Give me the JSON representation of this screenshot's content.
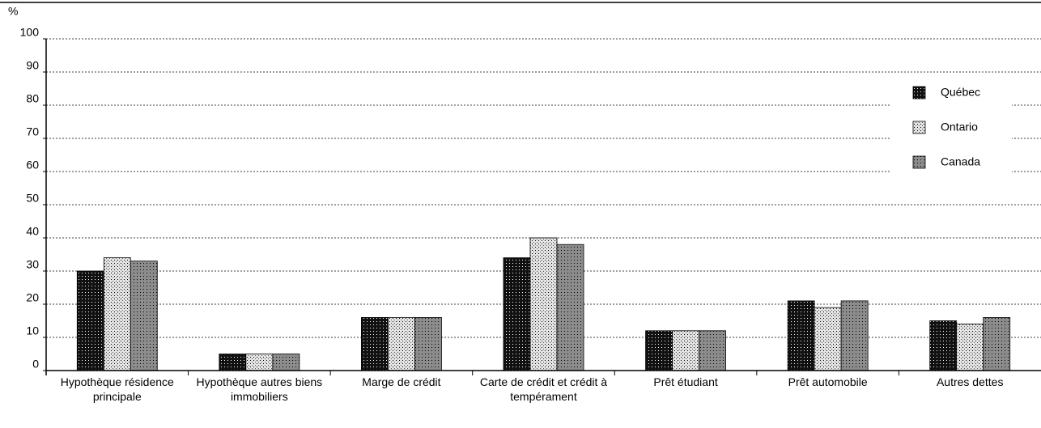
{
  "chart_data": {
    "type": "bar",
    "y_label": "%",
    "categories": [
      "Hypothèque résidence principale",
      "Hypothèque autres biens immobiliers",
      "Marge de crédit",
      "Carte de crédit et crédit à tempérament",
      "Prêt étudiant",
      "Prêt automobile",
      "Autres dettes"
    ],
    "series": [
      {
        "name": "Québec",
        "color": "#111111",
        "values": [
          30,
          5,
          16,
          34,
          12,
          21,
          15
        ]
      },
      {
        "name": "Ontario",
        "color": "#e4e4e4",
        "values": [
          34,
          5,
          16,
          40,
          12,
          19,
          14
        ]
      },
      {
        "name": "Canada",
        "color": "#8c8c8c",
        "values": [
          33,
          5,
          16,
          38,
          12,
          21,
          16
        ]
      }
    ],
    "ylim": [
      0,
      100
    ],
    "yticks": [
      0,
      10,
      20,
      30,
      40,
      50,
      60,
      70,
      80,
      90,
      100
    ],
    "grid": true,
    "legend": "right"
  }
}
